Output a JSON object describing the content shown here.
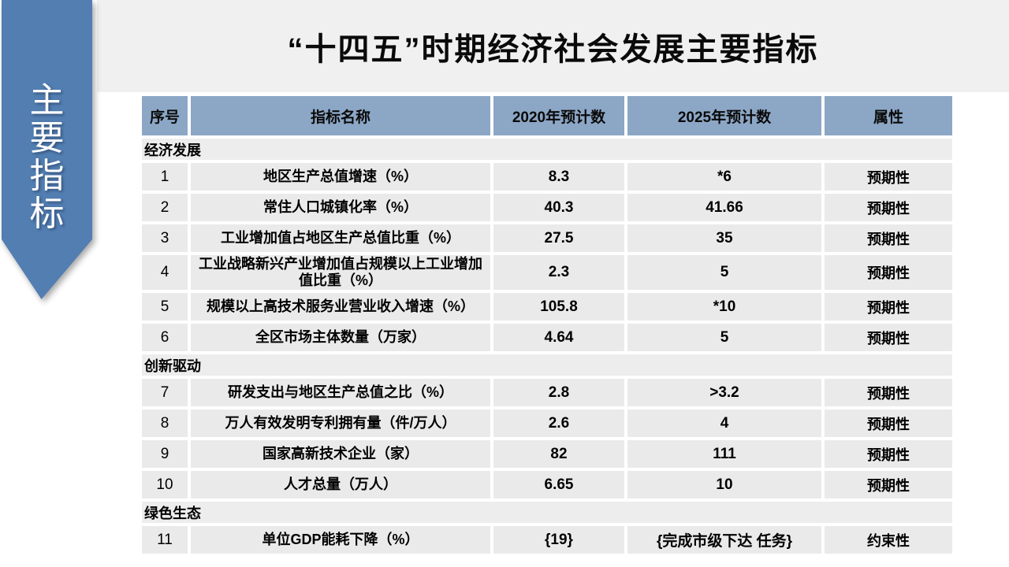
{
  "title": "“十四五”时期经济社会发展主要指标",
  "ribbon": {
    "label": "主要指标",
    "color": "#527eb2"
  },
  "colors": {
    "ribbon_blue": "#527eb2",
    "header_blue": "#8ca7c6",
    "row_gray": "#eaeaea",
    "section_gray": "#ededed",
    "title_band_gray": "#f0f0f0"
  },
  "table": {
    "headers": [
      "序号",
      "指标名称",
      "2020年预计数",
      "2025年预计数",
      "属性"
    ],
    "sections": [
      {
        "name": "经济发展",
        "rows": [
          [
            "1",
            "地区生产总值增速（%）",
            "8.3",
            "*6",
            "预期性"
          ],
          [
            "2",
            "常住人口城镇化率（%）",
            "40.3",
            "41.66",
            "预期性"
          ],
          [
            "3",
            "工业增加值占地区生产总值比重（%）",
            "27.5",
            "35",
            "预期性"
          ],
          [
            "4",
            "工业战略新兴产业增加值占规模以上工业增加值比重（%）",
            "2.3",
            "5",
            "预期性"
          ],
          [
            "5",
            "规模以上高技术服务业营业收入增速（%）",
            "105.8",
            "*10",
            "预期性"
          ],
          [
            "6",
            "全区市场主体数量（万家）",
            "4.64",
            "5",
            "预期性"
          ]
        ]
      },
      {
        "name": "创新驱动",
        "rows": [
          [
            "7",
            "研发支出与地区生产总值之比（%）",
            "2.8",
            ">3.2",
            "预期性"
          ],
          [
            "8",
            "万人有效发明专利拥有量（件/万人）",
            "2.6",
            "4",
            "预期性"
          ],
          [
            "9",
            "国家高新技术企业（家）",
            "82",
            "111",
            "预期性"
          ],
          [
            "10",
            "人才总量（万人）",
            "6.65",
            "10",
            "预期性"
          ]
        ]
      },
      {
        "name": "绿色生态",
        "rows": [
          [
            "11",
            "单位GDP能耗下降（%）",
            "{19}",
            "{完成市级下达 任务}",
            "约束性"
          ]
        ]
      }
    ]
  }
}
